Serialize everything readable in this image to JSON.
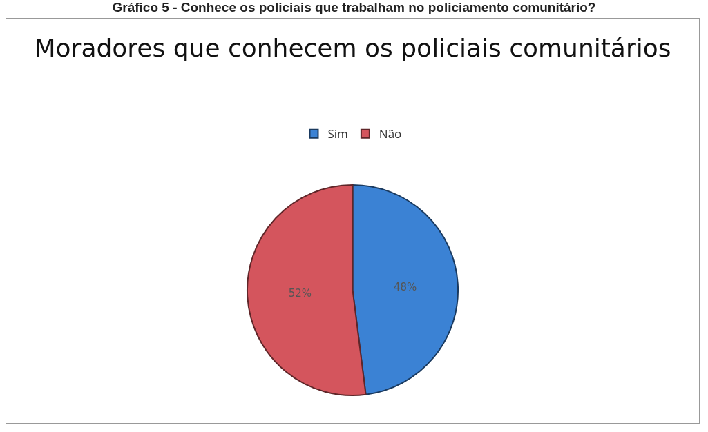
{
  "chart_data": {
    "type": "pie",
    "title": "Moradores que conhecem os policiais comunitários",
    "annotations": [
      "Gráfico 5 - Conhece os policiais que trabalham no policiamento comunitário?"
    ],
    "categories": [
      "Sim",
      "Não"
    ],
    "values": [
      48,
      52
    ],
    "colors": [
      "#3b82d4",
      "#d4555d"
    ],
    "value_labels": [
      "48%",
      "52%"
    ],
    "legend": "top"
  }
}
